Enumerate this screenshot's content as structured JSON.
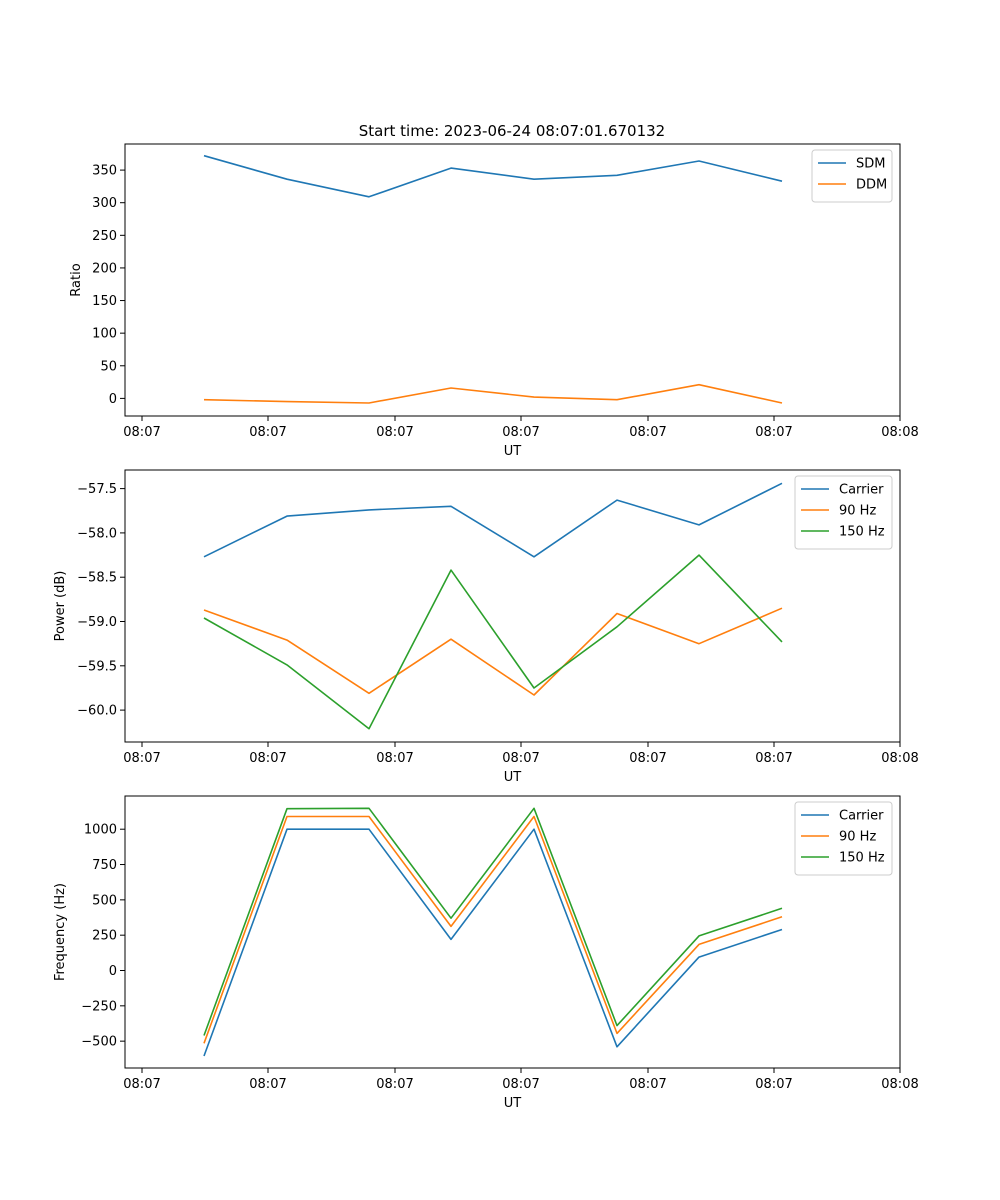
{
  "figure": {
    "title": "Start time: 2023-06-24 08:07:01.670132"
  },
  "colors": {
    "blue": "#1f77b4",
    "orange": "#ff7f0e",
    "green": "#2ca02c"
  },
  "chart_data": [
    {
      "type": "line",
      "title": "Start time: 2023-06-24 08:07:01.670132",
      "xlabel": "UT",
      "ylabel": "Ratio",
      "x_tick_labels": [
        "08:07",
        "08:07",
        "08:07",
        "08:07",
        "08:07",
        "08:07",
        "08:08"
      ],
      "yticks": [
        0,
        50,
        100,
        150,
        200,
        250,
        300,
        350
      ],
      "ylim": [
        -27,
        390
      ],
      "legend": "top-right",
      "series": [
        {
          "name": "SDM",
          "color": "#1f77b4",
          "values": [
            372,
            336,
            309,
            353,
            336,
            342,
            364,
            333
          ]
        },
        {
          "name": "DDM",
          "color": "#ff7f0e",
          "values": [
            -2,
            -5,
            -7,
            16,
            2,
            -2,
            21,
            -7
          ]
        }
      ]
    },
    {
      "type": "line",
      "xlabel": "UT",
      "ylabel": "Power (dB)",
      "x_tick_labels": [
        "08:07",
        "08:07",
        "08:07",
        "08:07",
        "08:07",
        "08:07",
        "08:08"
      ],
      "yticks": [
        -60.0,
        -59.5,
        -59.0,
        -58.5,
        -58.0,
        -57.5
      ],
      "ytick_labels": [
        "−60.0",
        "−59.5",
        "−59.0",
        "−58.5",
        "−58.0",
        "−57.5"
      ],
      "ylim": [
        -60.36,
        -57.29
      ],
      "legend": "top-right",
      "series": [
        {
          "name": "Carrier",
          "color": "#1f77b4",
          "values": [
            -58.27,
            -57.81,
            -57.74,
            -57.7,
            -58.27,
            -57.63,
            -57.91,
            -57.44
          ]
        },
        {
          "name": "90 Hz",
          "color": "#ff7f0e",
          "values": [
            -58.87,
            -59.21,
            -59.81,
            -59.2,
            -59.83,
            -58.91,
            -59.25,
            -58.85
          ]
        },
        {
          "name": "150 Hz",
          "color": "#2ca02c",
          "values": [
            -58.96,
            -59.49,
            -60.21,
            -58.42,
            -59.75,
            -59.06,
            -58.25,
            -59.23
          ]
        }
      ]
    },
    {
      "type": "line",
      "xlabel": "UT",
      "ylabel": "Frequency (Hz)",
      "x_tick_labels": [
        "08:07",
        "08:07",
        "08:07",
        "08:07",
        "08:07",
        "08:07",
        "08:08"
      ],
      "yticks": [
        -500,
        -250,
        0,
        250,
        500,
        750,
        1000
      ],
      "ytick_labels": [
        "−500",
        "−250",
        "0",
        "250",
        "500",
        "750",
        "1000"
      ],
      "ylim": [
        -690,
        1235
      ],
      "legend": "top-right",
      "series": [
        {
          "name": "Carrier",
          "color": "#1f77b4",
          "values": [
            -605,
            1000,
            1000,
            220,
            1000,
            -540,
            95,
            290
          ]
        },
        {
          "name": "90 Hz",
          "color": "#ff7f0e",
          "values": [
            -515,
            1090,
            1090,
            312,
            1090,
            -445,
            185,
            380
          ]
        },
        {
          "name": "150 Hz",
          "color": "#2ca02c",
          "values": [
            -460,
            1145,
            1148,
            370,
            1148,
            -390,
            245,
            440
          ]
        }
      ]
    }
  ]
}
